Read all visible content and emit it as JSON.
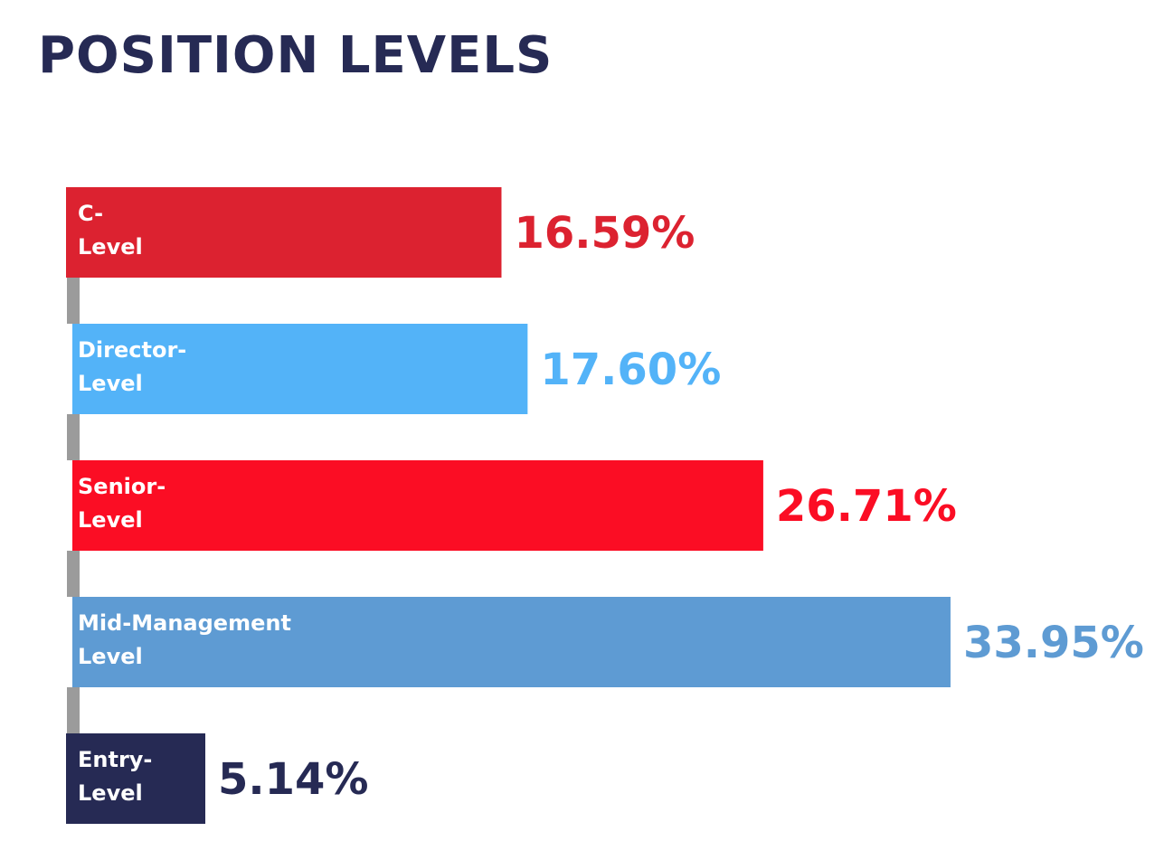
{
  "title": "POSITION LEVELS",
  "chart_data": {
    "type": "bar",
    "orientation": "horizontal",
    "title": "POSITION LEVELS",
    "categories": [
      [
        "C-",
        "Level"
      ],
      [
        "Director-",
        "Level"
      ],
      [
        "Senior-",
        "Level"
      ],
      [
        "Mid-Management",
        "Level"
      ],
      [
        "Entry-",
        "Level"
      ]
    ],
    "values": [
      16.59,
      17.6,
      26.71,
      33.95,
      5.14
    ],
    "value_labels": [
      "16.59%",
      "17.60%",
      "26.71%",
      "33.95%",
      "5.14%"
    ],
    "colors": [
      "#dc2230",
      "#53b3f8",
      "#fb0d24",
      "#5e9bd3",
      "#262a54"
    ],
    "label_color": "#ffffff",
    "connector_color": "#9b9b9b",
    "unit": "%",
    "grid": false,
    "legend": "none"
  }
}
